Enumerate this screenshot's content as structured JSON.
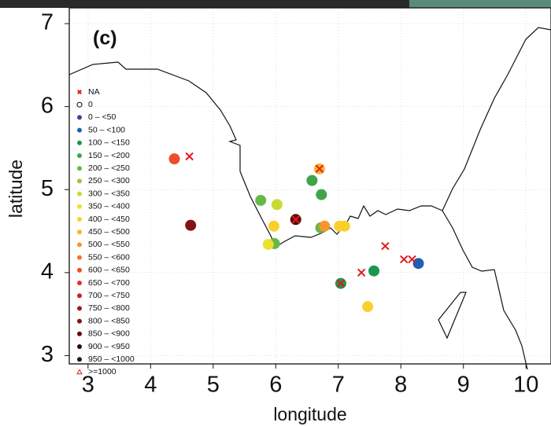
{
  "chart_data": {
    "type": "scatter",
    "panel_label": "(c)",
    "x_label": "longitude",
    "y_label": "latitude",
    "xlim": [
      2.7,
      10.4
    ],
    "ylim": [
      2.9,
      7.19
    ],
    "xticks": [
      3,
      4,
      5,
      6,
      7,
      8,
      9,
      10
    ],
    "yticks": [
      3,
      4,
      5,
      6,
      7
    ],
    "grid": true,
    "series": [
      {
        "name": "NA",
        "color": "#e41a1c",
        "marker": "x",
        "x": [
          4.62,
          6.32,
          6.7,
          7.75,
          8.05,
          8.18,
          7.37,
          7.04
        ],
        "values": [
          5.4,
          4.64,
          5.25,
          4.32,
          4.16,
          4.16,
          4.0,
          3.87
        ]
      },
      {
        "name": "0",
        "color": "#000000",
        "marker": "open-circle",
        "x": [],
        "values": []
      },
      {
        "name": "0 – <50",
        "color": "#3b3f9a",
        "marker": "circle",
        "x": [],
        "values": []
      },
      {
        "name": "50 – <100",
        "color": "#1f5fb4",
        "marker": "circle",
        "x": [
          8.28
        ],
        "values": [
          4.11
        ]
      },
      {
        "name": "100 – <150",
        "color": "#1a9850",
        "marker": "circle",
        "x": [
          7.57,
          7.04
        ],
        "values": [
          4.02,
          3.87
        ]
      },
      {
        "name": "150 – <200",
        "color": "#3fa548",
        "marker": "circle",
        "x": [
          6.58,
          6.73
        ],
        "values": [
          5.11,
          4.94
        ]
      },
      {
        "name": "200 – <250",
        "color": "#66b847",
        "marker": "circle",
        "x": [
          5.76,
          5.98,
          6.72
        ],
        "values": [
          4.87,
          4.35,
          4.54
        ]
      },
      {
        "name": "250 – <300",
        "color": "#96c83e",
        "marker": "circle",
        "x": [],
        "values": []
      },
      {
        "name": "300 – <350",
        "color": "#c8da36",
        "marker": "circle",
        "x": [
          6.02
        ],
        "values": [
          4.82
        ]
      },
      {
        "name": "350 – <400",
        "color": "#eee031",
        "marker": "circle",
        "x": [
          5.88
        ],
        "values": [
          4.34
        ]
      },
      {
        "name": "400 – <450",
        "color": "#f9d02b",
        "marker": "circle",
        "x": [
          7.02,
          7.1,
          7.47,
          5.97
        ],
        "values": [
          4.56,
          4.56,
          3.59,
          4.56
        ]
      },
      {
        "name": "450 – <500",
        "color": "#f9b52c",
        "marker": "circle",
        "x": [
          6.7
        ],
        "values": [
          5.25
        ]
      },
      {
        "name": "500 – <550",
        "color": "#f6962c",
        "marker": "circle",
        "x": [
          6.78
        ],
        "values": [
          4.56
        ]
      },
      {
        "name": "550 – <600",
        "color": "#f2772c",
        "marker": "circle",
        "x": [],
        "values": []
      },
      {
        "name": "600 – <650",
        "color": "#ee4d2c",
        "marker": "circle",
        "x": [
          4.38
        ],
        "values": [
          5.37
        ]
      },
      {
        "name": "650 – <700",
        "color": "#e5302a",
        "marker": "circle",
        "x": [],
        "values": []
      },
      {
        "name": "700 – <750",
        "color": "#c92027",
        "marker": "circle",
        "x": [],
        "values": []
      },
      {
        "name": "750 – <800",
        "color": "#a6171f",
        "marker": "circle",
        "x": [],
        "values": []
      },
      {
        "name": "800 – <850",
        "color": "#851216",
        "marker": "circle",
        "x": [
          4.64
        ],
        "values": [
          4.57
        ]
      },
      {
        "name": "850 – <900",
        "color": "#5c0b0e",
        "marker": "circle",
        "x": [
          6.32
        ],
        "values": [
          4.64
        ]
      },
      {
        "name": "900 – <950",
        "color": "#33080a",
        "marker": "circle",
        "x": [],
        "values": []
      },
      {
        "name": "950 – <1000",
        "color": "#1a1a1a",
        "marker": "circle",
        "x": [],
        "values": []
      },
      {
        "name": ">=1000",
        "color": "#e41a1c",
        "marker": "triangle",
        "x": [],
        "values": []
      }
    ]
  }
}
